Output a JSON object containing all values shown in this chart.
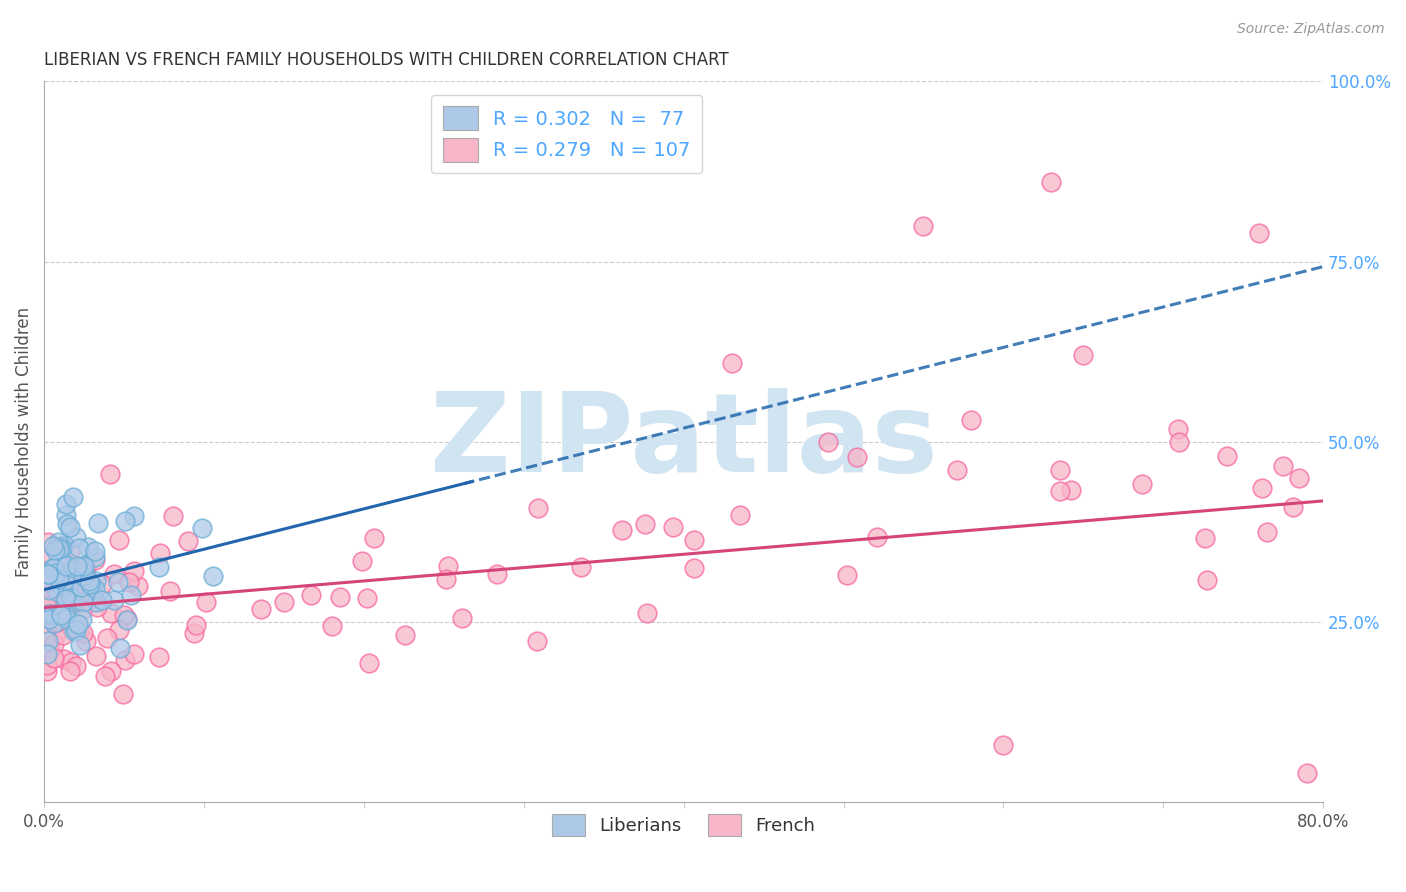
{
  "title": "LIBERIAN VS FRENCH FAMILY HOUSEHOLDS WITH CHILDREN CORRELATION CHART",
  "source": "Source: ZipAtlas.com",
  "ylabel": "Family Households with Children",
  "xlim": [
    0.0,
    0.8
  ],
  "ylim": [
    0.0,
    1.0
  ],
  "liberian_R": 0.302,
  "liberian_N": 77,
  "french_R": 0.279,
  "french_N": 107,
  "liberian_color": "#aec9e8",
  "liberian_edge_color": "#6baed6",
  "french_color": "#f7b6c8",
  "french_edge_color": "#f768a1",
  "liberian_line_color": "#2166ac",
  "french_line_color": "#d6457a",
  "grid_color": "#cccccc",
  "watermark_text": "ZIPatlas",
  "watermark_color": "#d0e4f2",
  "background_color": "#ffffff",
  "right_tick_color": "#4da6ff",
  "title_color": "#333333",
  "source_color": "#999999",
  "ylabel_color": "#555555"
}
